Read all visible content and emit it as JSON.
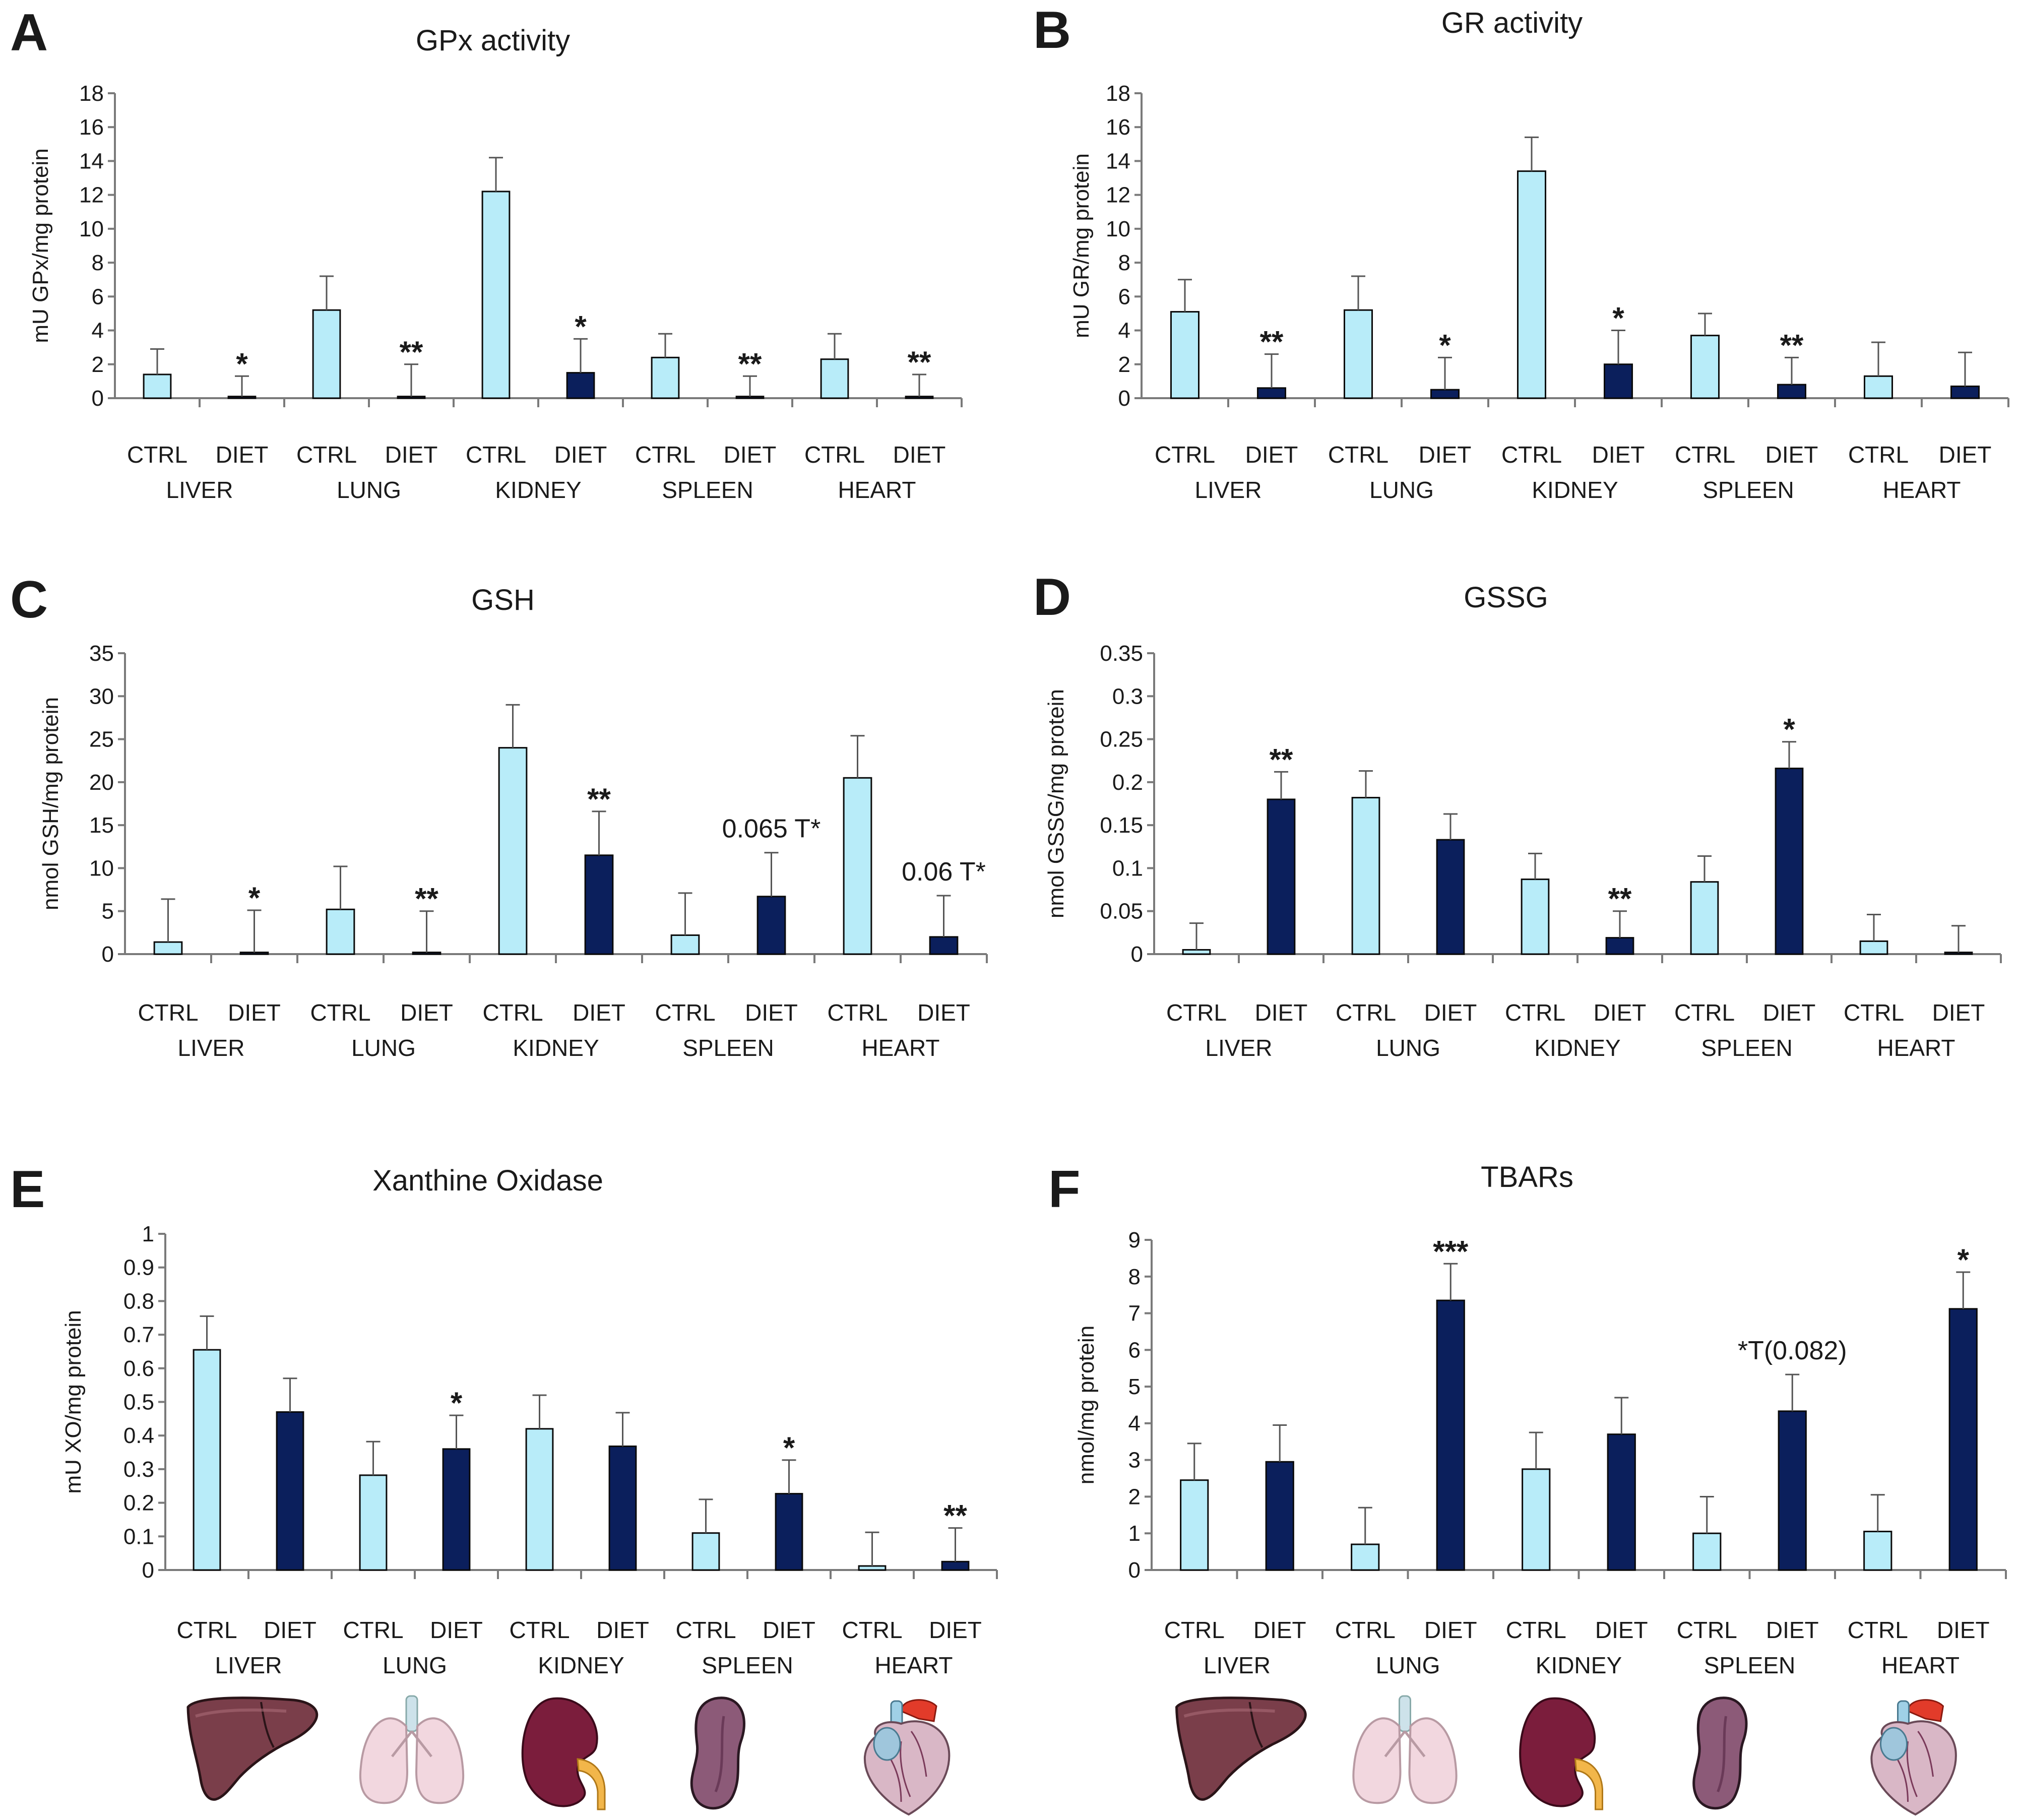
{
  "colors": {
    "ctrl": "#b8ecf9",
    "diet": "#0b1f5c",
    "axis": "#7a7a7a",
    "error": "#555555"
  },
  "groups": [
    "CTRL",
    "DIET"
  ],
  "organs": [
    "LIVER",
    "LUNG",
    "KIDNEY",
    "SPLEEN",
    "HEART"
  ],
  "illustrations": [
    "liver-icon",
    "lung-icon",
    "kidney-icon",
    "spleen-icon",
    "heart-icon"
  ],
  "chart_data": [
    {
      "panel": "A",
      "type": "bar",
      "title": "GPx activity",
      "ylabel": "mU GPx/mg protein",
      "ylim": [
        0,
        18
      ],
      "ticks": [
        0,
        2,
        4,
        6,
        8,
        10,
        12,
        14,
        16,
        18
      ],
      "tick_labels": [
        "0",
        "2",
        "4",
        "6",
        "8",
        "10",
        "12",
        "14",
        "16",
        "18"
      ],
      "categories": [
        "LIVER",
        "LUNG",
        "KIDNEY",
        "SPLEEN",
        "HEART"
      ],
      "series": [
        {
          "name": "CTRL",
          "values": [
            1.4,
            5.2,
            12.2,
            2.4,
            2.3
          ],
          "errors": [
            1.5,
            2.0,
            2.0,
            1.4,
            1.5
          ]
        },
        {
          "name": "DIET",
          "values": [
            0.1,
            0.1,
            1.5,
            0.1,
            0.1
          ],
          "errors": [
            1.2,
            1.9,
            2.0,
            1.2,
            1.3
          ]
        }
      ],
      "significance": [
        "*",
        "**",
        "*",
        "**",
        "**"
      ]
    },
    {
      "panel": "B",
      "type": "bar",
      "title": "GR activity",
      "ylabel": "mU GR/mg protein",
      "ylim": [
        0,
        18
      ],
      "ticks": [
        0,
        2,
        4,
        6,
        8,
        10,
        12,
        14,
        16,
        18
      ],
      "tick_labels": [
        "0",
        "2",
        "4",
        "6",
        "8",
        "10",
        "12",
        "14",
        "16",
        "18"
      ],
      "categories": [
        "LIVER",
        "LUNG",
        "KIDNEY",
        "SPLEEN",
        "HEART"
      ],
      "series": [
        {
          "name": "CTRL",
          "values": [
            5.1,
            5.2,
            13.4,
            3.7,
            1.3
          ],
          "errors": [
            1.9,
            2.0,
            2.0,
            1.3,
            2.0
          ]
        },
        {
          "name": "DIET",
          "values": [
            0.6,
            0.5,
            2.0,
            0.8,
            0.7
          ],
          "errors": [
            2.0,
            1.9,
            2.0,
            1.6,
            2.0
          ]
        }
      ],
      "significance": [
        "**",
        "*",
        "*",
        "**",
        ""
      ]
    },
    {
      "panel": "C",
      "type": "bar",
      "title": "GSH",
      "ylabel": "nmol GSH/mg protein",
      "ylim": [
        0,
        35
      ],
      "ticks": [
        0,
        5,
        10,
        15,
        20,
        25,
        30,
        35
      ],
      "tick_labels": [
        "0",
        "5",
        "10",
        "15",
        "20",
        "25",
        "30",
        "35"
      ],
      "categories": [
        "LIVER",
        "LUNG",
        "KIDNEY",
        "SPLEEN",
        "HEART"
      ],
      "series": [
        {
          "name": "CTRL",
          "values": [
            1.4,
            5.2,
            24.0,
            2.2,
            20.5
          ],
          "errors": [
            5.0,
            5.0,
            5.0,
            4.9,
            4.9
          ]
        },
        {
          "name": "DIET",
          "values": [
            0.2,
            0.2,
            11.5,
            6.7,
            2.0
          ],
          "errors": [
            4.9,
            4.8,
            5.1,
            5.1,
            4.8
          ]
        }
      ],
      "significance": [
        "*",
        "**",
        "**",
        "0.065 T*",
        "0.06 T*"
      ]
    },
    {
      "panel": "D",
      "type": "bar",
      "title": "GSSG",
      "ylabel": "nmol GSSG/mg protein",
      "ylim": [
        0,
        0.35
      ],
      "ticks": [
        0,
        0.05,
        0.1,
        0.15,
        0.2,
        0.25,
        0.3,
        0.35
      ],
      "tick_labels": [
        "0",
        "0.05",
        "0.1",
        "0.15",
        "0.2",
        "0.25",
        "0.3",
        "0.35"
      ],
      "categories": [
        "LIVER",
        "LUNG",
        "KIDNEY",
        "SPLEEN",
        "HEART"
      ],
      "series": [
        {
          "name": "CTRL",
          "values": [
            0.005,
            0.182,
            0.087,
            0.084,
            0.015
          ],
          "errors": [
            0.031,
            0.031,
            0.03,
            0.03,
            0.031
          ]
        },
        {
          "name": "DIET",
          "values": [
            0.18,
            0.133,
            0.019,
            0.216,
            0.002
          ],
          "errors": [
            0.032,
            0.03,
            0.031,
            0.031,
            0.031
          ]
        }
      ],
      "significance": [
        "**",
        "",
        "**",
        "*",
        ""
      ]
    },
    {
      "panel": "E",
      "type": "bar",
      "title": "Xanthine Oxidase",
      "ylabel": "mU XO/mg protein",
      "ylim": [
        0,
        1
      ],
      "ticks": [
        0,
        0.1,
        0.2,
        0.3,
        0.4,
        0.5,
        0.6,
        0.7,
        0.8,
        0.9,
        1
      ],
      "tick_labels": [
        "0",
        "0.1",
        "0.2",
        "0.3",
        "0.4",
        "0.5",
        "0.6",
        "0.7",
        "0.8",
        "0.9",
        "1"
      ],
      "categories": [
        "LIVER",
        "LUNG",
        "KIDNEY",
        "SPLEEN",
        "HEART"
      ],
      "series": [
        {
          "name": "CTRL",
          "values": [
            0.655,
            0.282,
            0.42,
            0.11,
            0.012
          ],
          "errors": [
            0.1,
            0.1,
            0.1,
            0.1,
            0.1
          ]
        },
        {
          "name": "DIET",
          "values": [
            0.47,
            0.36,
            0.368,
            0.227,
            0.025
          ],
          "errors": [
            0.1,
            0.1,
            0.1,
            0.1,
            0.1
          ]
        }
      ],
      "significance": [
        "",
        "*",
        "",
        "*",
        "**"
      ]
    },
    {
      "panel": "F",
      "type": "bar",
      "title": "TBARs",
      "ylabel": "nmol/mg  protein",
      "ylim": [
        0,
        9
      ],
      "ticks": [
        0,
        1,
        2,
        3,
        4,
        5,
        6,
        7,
        8,
        9
      ],
      "tick_labels": [
        "0",
        "1",
        "2",
        "3",
        "4",
        "5",
        "6",
        "7",
        "8",
        "9"
      ],
      "categories": [
        "LIVER",
        "LUNG",
        "KIDNEY",
        "SPLEEN",
        "HEART"
      ],
      "series": [
        {
          "name": "CTRL",
          "values": [
            2.45,
            0.7,
            2.75,
            1.0,
            1.05
          ],
          "errors": [
            1.0,
            1.0,
            1.0,
            1.0,
            1.0
          ]
        },
        {
          "name": "DIET",
          "values": [
            2.95,
            7.35,
            3.7,
            4.33,
            7.12
          ],
          "errors": [
            1.0,
            1.0,
            1.0,
            1.0,
            1.0
          ]
        }
      ],
      "significance": [
        "",
        "***",
        "",
        "*T(0.082)",
        "*"
      ]
    }
  ]
}
